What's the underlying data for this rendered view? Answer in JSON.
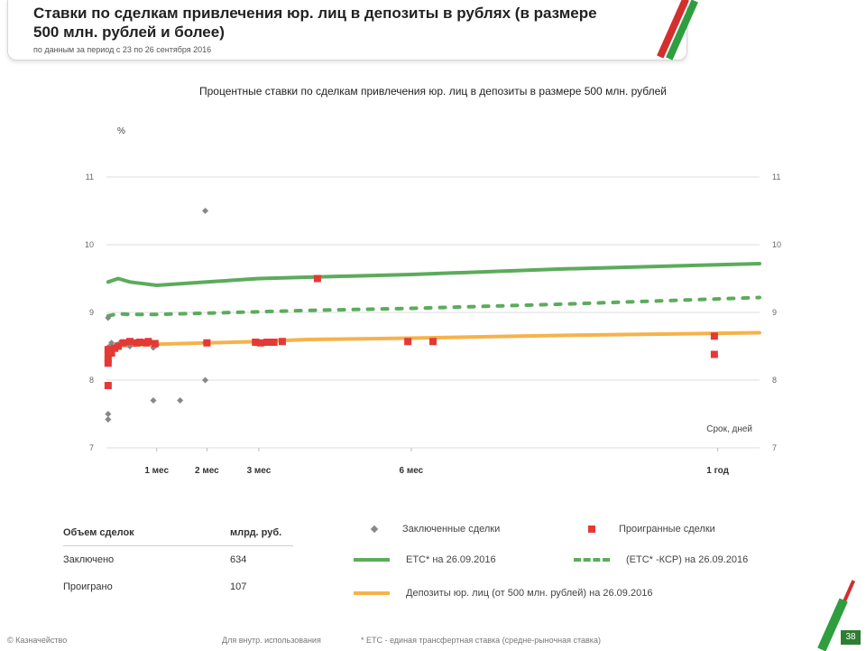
{
  "header": {
    "title": "Ставки по сделкам привлечения юр. лиц в депозиты в рублях (в размере 500 млн. рублей и более)",
    "subtitle": "по данным за период с 23 по 26 сентября 2016"
  },
  "colors": {
    "accent_green": "#2e9e3e",
    "accent_red": "#d32f2f",
    "ets_line": "#5cab5c",
    "deposits_line": "#f6b24a",
    "closed_marker": "#888888",
    "rejected_marker": "#e53935"
  },
  "chart_data": {
    "type": "scatter",
    "title": "Процентные ставки по сделкам привлечения юр. лиц в депозиты в размере 500 млн. рублей",
    "ylabel": "%",
    "xlabel": "Срок, дней",
    "ylim": [
      7,
      11
    ],
    "xlim": [
      0,
      390
    ],
    "yticks": [
      7,
      8,
      9,
      10,
      11
    ],
    "xticks": [
      {
        "value": 30,
        "label": "1 мес"
      },
      {
        "value": 60,
        "label": "2 мес"
      },
      {
        "value": 91,
        "label": "3 мес"
      },
      {
        "value": 182,
        "label": "6 мес"
      },
      {
        "value": 365,
        "label": "1 год"
      }
    ],
    "grid": true,
    "series": [
      {
        "name": "ЕТС* на 26.09.2016",
        "kind": "line",
        "style": "solid",
        "x": [
          1,
          7,
          14,
          30,
          60,
          91,
          120,
          182,
          270,
          390
        ],
        "y": [
          9.45,
          9.5,
          9.45,
          9.4,
          9.45,
          9.5,
          9.52,
          9.56,
          9.64,
          9.72
        ]
      },
      {
        "name": "(ЕТС* -КСР) на 26.09.2016",
        "kind": "line",
        "style": "dashed",
        "x": [
          1,
          7,
          14,
          30,
          60,
          91,
          120,
          182,
          270,
          390
        ],
        "y": [
          8.95,
          8.98,
          8.97,
          8.97,
          8.99,
          9.01,
          9.03,
          9.06,
          9.12,
          9.22
        ]
      },
      {
        "name": "Депозиты юр. лиц (от 500 млн. рублей) на 26.09.2016",
        "kind": "line",
        "style": "solid",
        "x": [
          1,
          30,
          60,
          91,
          120,
          182,
          270,
          390
        ],
        "y": [
          8.5,
          8.53,
          8.55,
          8.57,
          8.6,
          8.62,
          8.66,
          8.7
        ]
      },
      {
        "name": "Заключенные сделки",
        "kind": "scatter",
        "marker": "diamond",
        "x": [
          1,
          1,
          1,
          1,
          1,
          2,
          3,
          6,
          8,
          10,
          14,
          28,
          28,
          30,
          44,
          59,
          59,
          59
        ],
        "y": [
          8.92,
          8.45,
          8.3,
          7.5,
          7.42,
          8.5,
          8.55,
          8.52,
          8.55,
          8.56,
          8.5,
          8.48,
          7.7,
          8.52,
          7.7,
          10.5,
          8.55,
          8.0
        ]
      },
      {
        "name": "Проигранные сделки",
        "kind": "scatter",
        "marker": "square",
        "x": [
          1,
          1,
          1,
          1,
          1,
          2,
          3,
          5,
          7,
          10,
          14,
          18,
          20,
          24,
          25,
          29,
          60,
          89,
          92,
          96,
          100,
          105,
          126,
          180,
          195,
          363,
          363
        ],
        "y": [
          8.45,
          8.38,
          8.3,
          8.25,
          7.92,
          8.45,
          8.4,
          8.47,
          8.5,
          8.55,
          8.57,
          8.55,
          8.56,
          8.55,
          8.57,
          8.54,
          8.55,
          8.56,
          8.55,
          8.56,
          8.56,
          8.57,
          9.5,
          8.57,
          8.57,
          8.65,
          8.38
        ]
      }
    ]
  },
  "volume_table": {
    "header_label": "Объем сделок",
    "header_unit": "млрд. руб.",
    "rows": [
      {
        "label": "Заключено",
        "value": "634"
      },
      {
        "label": "Проиграно",
        "value": "107"
      }
    ]
  },
  "legend": {
    "closed": "Заключенные сделки",
    "rejected": "Проигранные сделки",
    "ets": "ЕТС* на 26.09.2016",
    "ets_ksr": "(ЕТС* -КСР) на 26.09.2016",
    "deposits": "Депозиты юр. лиц (от 500 млн. рублей) на 26.09.2016"
  },
  "footer": {
    "left": "© Казначейство",
    "middle": "Для внутр. использования",
    "note": "* ЕТС - единая трансфертная ставка (средне-рыночная ставка)",
    "page": "38"
  }
}
